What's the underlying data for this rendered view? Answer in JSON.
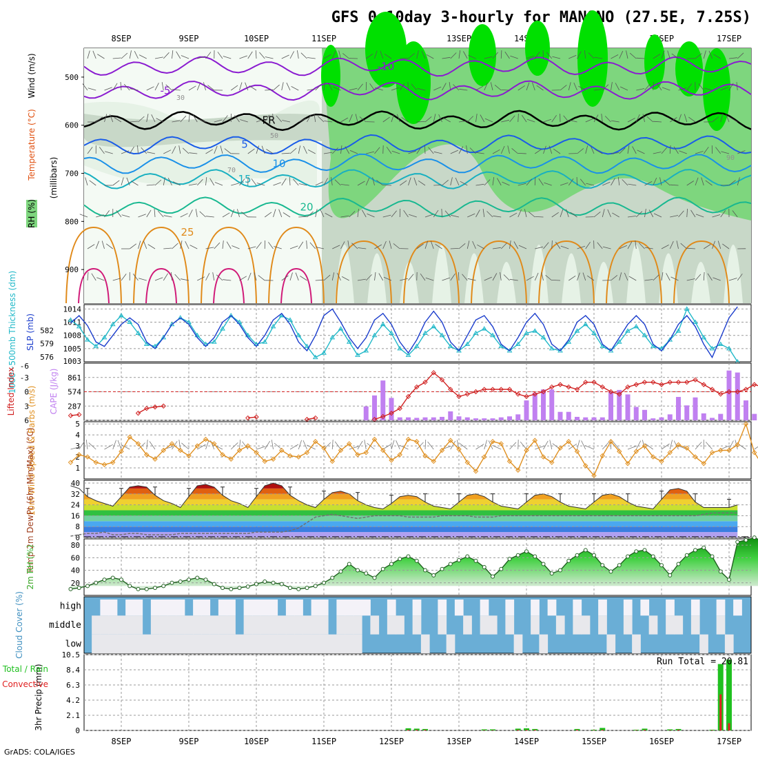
{
  "title": "GFS 0~10day 3-hourly for MANONO (27.5E, 7.25S)",
  "credit": "GrADS: COLA/IGES",
  "colors": {
    "temp_contour_cold": "#8a1bd0",
    "temp_contour_mid": "#1a5ce8",
    "temp_contour_warm": "#e08a1a",
    "temp_contour_hot": "#d01a78",
    "freezing": "#000000",
    "rh_light": "#e6f2e6",
    "rh_mid": "#c8d8c8",
    "rh_high": "#7ed67e",
    "rh_very_high": "#00e000",
    "slp": "#1a3ccc",
    "thickness": "#20b8c8",
    "lifted_index": "#d02020",
    "cape": "#c080f0",
    "wind_speed": "#e09020",
    "temp_fill": "#e05010",
    "dewpoint": "#707070",
    "rh2m": "#40c040",
    "cloud": "#6aaed6",
    "precip_total": "#20c020",
    "precip_conv": "#e02020"
  },
  "chart_data": [
    {
      "panel": "upper_air",
      "type": "heatmap",
      "title": "GFS 0~10day 3-hourly for MANONO (27.5E, 7.25S)",
      "ylabel": "(millibars)",
      "legend_labels": [
        "RH (%)",
        "Temperature (°C)",
        "Wind (m/s)"
      ],
      "x_tick_labels": [
        "8SEP",
        "9SEP",
        "10SEP",
        "11SEP",
        "12SEP",
        "13SEP",
        "14SEP",
        "15SEP",
        "16SEP",
        "17SEP"
      ],
      "y_ticks": [
        500,
        600,
        700,
        800,
        900
      ],
      "ylim": [
        970,
        440
      ],
      "temperature_contour_labels": [
        "-10",
        "-5",
        "FR",
        "5",
        "10",
        "15",
        "20",
        "25"
      ],
      "rh_contour_labels": [
        "30",
        "50",
        "70",
        "90"
      ],
      "freezing_level_mb": 590
    },
    {
      "panel": "slp_thickness",
      "type": "line",
      "ylabel_left": "1000~500mb Thickness (dm)",
      "ylabel_right": "SLP (mb)",
      "thickness_ticks": [
        "576",
        "579",
        "582"
      ],
      "slp_ticks": [
        "1005",
        "1008",
        "1011",
        "1014"
      ],
      "slp_ylim": [
        1002,
        1015
      ],
      "bottom_tick": "1003",
      "series": [
        {
          "name": "SLP",
          "values": [
            1010.8,
            1012.5,
            1010.2,
            1006.5,
            1005.5,
            1008.0,
            1010.5,
            1012.0,
            1010.5,
            1006.5,
            1005.0,
            1007.5,
            1010.5,
            1012.0,
            1010.5,
            1007.5,
            1005.5,
            1007.5,
            1011.0,
            1012.5,
            1010.5,
            1007.5,
            1005.5,
            1008.0,
            1011.5,
            1013.0,
            1010.5,
            1006.5,
            1004.5,
            1008.0,
            1012.5,
            1014.0,
            1011.0,
            1007.5,
            1005.0,
            1007.5,
            1011.5,
            1013.0,
            1010.5,
            1006.5,
            1004.0,
            1007.0,
            1011.0,
            1013.5,
            1011.0,
            1006.5,
            1004.5,
            1008.0,
            1011.5,
            1012.5,
            1010.0,
            1006.0,
            1004.5,
            1007.5,
            1011.0,
            1013.0,
            1010.5,
            1006.0,
            1004.5,
            1007.0,
            1011.0,
            1012.5,
            1010.5,
            1006.0,
            1004.5,
            1007.5,
            1010.5,
            1012.5,
            1010.5,
            1006.0,
            1004.5,
            1007.0,
            1010.5,
            1012.5,
            1010.0,
            1006.0,
            1003.0,
            1007.5,
            1012.0,
            1014.5
          ]
        },
        {
          "name": "1000~500mb Thickness",
          "values": [
            1011.5,
            1010.0,
            1007.0,
            1005.5,
            1007.5,
            1010.5,
            1012.5,
            1011.0,
            1008.5,
            1006.0,
            1005.5,
            1007.5,
            1010.5,
            1012.0,
            1011.0,
            1008.0,
            1006.0,
            1006.5,
            1009.5,
            1012.5,
            1011.0,
            1008.0,
            1006.0,
            1006.5,
            1010.0,
            1012.5,
            1011.5,
            1008.0,
            1005.5,
            1003.0,
            1004.0,
            1007.5,
            1009.5,
            1006.5,
            1003.5,
            1004.5,
            1008.0,
            1010.5,
            1008.5,
            1005.0,
            1003.5,
            1005.5,
            1008.5,
            1010.0,
            1008.0,
            1005.5,
            1004.5,
            1006.0,
            1008.5,
            1009.5,
            1008.0,
            1005.5,
            1004.5,
            1006.0,
            1008.5,
            1009.0,
            1007.5,
            1005.0,
            1004.5,
            1006.5,
            1009.0,
            1010.5,
            1008.5,
            1005.5,
            1004.5,
            1006.5,
            1009.0,
            1010.0,
            1008.0,
            1005.5,
            1005.0,
            1007.0,
            1009.0,
            1014.0,
            1011.0,
            1007.5,
            1005.0,
            1006.0,
            1005.0,
            1002.0
          ]
        }
      ]
    },
    {
      "panel": "lifted_index_cape",
      "type": "bar",
      "ylabel_left": "Lifted Index",
      "ylabel_right": "CAPE (J/kg)",
      "li_ticks": [
        "-3",
        "0",
        "3",
        "6"
      ],
      "cape_ticks": [
        "287",
        "574",
        "861"
      ],
      "li_ylim": [
        6,
        -6
      ],
      "top_tick": "-6",
      "series": [
        {
          "name": "CAPE (J/kg)",
          "values": [
            0,
            0,
            0,
            0,
            0,
            0,
            0,
            0,
            0,
            0,
            0,
            0,
            0,
            0,
            0,
            0,
            0,
            0,
            0,
            0,
            0,
            0,
            0,
            0,
            0,
            0,
            0,
            0,
            0,
            0,
            0,
            0,
            0,
            0,
            0,
            280,
            500,
            800,
            450,
            60,
            60,
            50,
            60,
            60,
            70,
            180,
            80,
            60,
            40,
            40,
            40,
            60,
            80,
            120,
            400,
            550,
            620,
            620,
            170,
            170,
            70,
            60,
            60,
            60,
            580,
            610,
            520,
            270,
            210,
            40,
            60,
            120,
            470,
            300,
            460,
            140,
            50,
            130,
            1000,
            960,
            400,
            130,
            130,
            140,
            140,
            130
          ]
        },
        {
          "name": "Lifted Index",
          "values": [
            5.0,
            4.8,
            null,
            null,
            null,
            null,
            null,
            null,
            4.5,
            3.5,
            3.2,
            3.0,
            null,
            null,
            null,
            null,
            null,
            null,
            null,
            null,
            null,
            5.5,
            5.3,
            null,
            null,
            null,
            null,
            null,
            5.8,
            5.5,
            null,
            null,
            null,
            null,
            null,
            null,
            5.8,
            5.2,
            4.5,
            3.5,
            1.0,
            -1.0,
            -2.0,
            -4.0,
            -2.5,
            -0.5,
            1.0,
            0.5,
            0.0,
            -0.5,
            -0.5,
            -0.5,
            -0.5,
            0.5,
            1.0,
            0.5,
            0.0,
            -1.0,
            -1.5,
            -1.0,
            -0.5,
            -2.0,
            -2.0,
            -1.0,
            0.0,
            0.5,
            -1.0,
            -1.5,
            -2.0,
            -2.0,
            -1.5,
            -2.0,
            -2.0,
            -2.0,
            -2.5,
            -1.5,
            -0.5,
            0.5,
            0.0,
            0.0,
            -0.5,
            -1.5,
            -1.0,
            -1.5,
            -4.0,
            -3.5,
            -1.5,
            0.5,
            -1.0,
            -2.5,
            -3.0,
            -2.5,
            -3.0
          ]
        }
      ]
    },
    {
      "panel": "wind_10m",
      "type": "line",
      "ylabel": "10m Wind Speed & Barbs (m/s)",
      "y_ticks": [
        "1",
        "2",
        "3",
        "4",
        "5"
      ],
      "ylim": [
        0,
        5.2
      ],
      "series": [
        {
          "name": "10m Wind Speed",
          "values": [
            1.5,
            2.2,
            2.0,
            1.5,
            1.3,
            1.5,
            2.5,
            3.8,
            3.2,
            2.2,
            1.8,
            2.6,
            3.2,
            2.6,
            2.1,
            3.0,
            3.6,
            3.2,
            2.2,
            1.8,
            2.6,
            3.0,
            2.4,
            1.6,
            1.8,
            2.6,
            2.1,
            2.0,
            2.4,
            3.4,
            2.8,
            1.6,
            2.6,
            3.2,
            2.2,
            2.4,
            3.6,
            2.6,
            1.7,
            2.2,
            3.6,
            3.4,
            2.1,
            1.6,
            2.6,
            3.5,
            2.7,
            1.5,
            0.7,
            2.0,
            3.4,
            3.2,
            1.6,
            0.8,
            2.6,
            3.5,
            2.0,
            1.5,
            2.8,
            3.4,
            2.5,
            1.2,
            0.3,
            2.1,
            3.4,
            2.5,
            1.4,
            2.5,
            3.0,
            2.0,
            1.6,
            2.4,
            3.1,
            2.8,
            2.0,
            1.4,
            2.4,
            2.6,
            2.6,
            3.1,
            5.0,
            2.4,
            1.2,
            1.8
          ]
        }
      ]
    },
    {
      "panel": "temp_2m",
      "type": "area",
      "ylabel": "2m Temp 2m DewPt (6hr Min/Max) (°C)",
      "y_ticks": [
        "0",
        "8",
        "16",
        "24",
        "32",
        "40"
      ],
      "ylim": [
        0,
        42
      ],
      "series": [
        {
          "name": "2m Temp",
          "values": [
            38,
            36,
            30,
            27,
            25,
            23,
            30,
            37,
            38,
            37,
            31,
            27,
            25,
            22,
            30,
            38,
            39,
            37,
            31,
            27,
            25,
            22,
            30,
            38,
            40,
            38,
            31,
            27,
            24,
            22,
            28,
            33,
            34,
            32,
            27,
            24,
            22,
            21,
            25,
            30,
            31,
            30,
            26,
            23,
            22,
            21,
            26,
            31,
            32,
            30,
            26,
            23,
            22,
            21,
            26,
            31,
            32,
            30,
            26,
            23,
            22,
            21,
            26,
            31,
            32,
            30,
            26,
            23,
            22,
            21,
            28,
            35,
            36,
            34,
            26,
            22,
            22,
            22,
            22,
            24
          ]
        },
        {
          "name": "2m DewPt",
          "values": [
            1,
            2,
            3,
            3,
            4,
            2,
            2,
            3,
            3,
            2,
            2,
            2,
            2,
            3,
            3,
            3,
            3,
            3,
            3,
            3,
            3,
            3,
            4,
            4,
            4,
            4,
            5,
            7,
            11,
            15,
            16,
            17,
            16,
            15,
            14,
            15,
            16,
            16,
            16,
            16,
            15,
            15,
            15,
            15,
            16,
            16,
            16,
            16,
            15,
            15,
            15,
            16,
            16,
            16,
            16,
            16,
            16,
            16,
            16,
            16,
            16,
            16,
            16,
            16,
            16,
            16,
            16,
            16,
            16,
            16,
            16,
            16,
            16,
            16,
            16,
            17,
            18,
            18,
            18,
            18
          ]
        }
      ]
    },
    {
      "panel": "rh_2m",
      "type": "area",
      "ylabel": "2m RH (%)",
      "y_ticks": [
        "20",
        "40",
        "60",
        "80"
      ],
      "ylim": [
        0,
        90
      ],
      "series": [
        {
          "name": "2m RH",
          "values": [
            10,
            12,
            15,
            20,
            25,
            28,
            25,
            15,
            10,
            10,
            12,
            15,
            20,
            22,
            25,
            28,
            25,
            18,
            12,
            10,
            12,
            14,
            18,
            22,
            20,
            18,
            12,
            10,
            12,
            15,
            20,
            28,
            38,
            50,
            40,
            35,
            28,
            42,
            50,
            58,
            62,
            55,
            40,
            32,
            42,
            50,
            56,
            62,
            55,
            45,
            30,
            42,
            58,
            64,
            70,
            62,
            50,
            35,
            40,
            55,
            64,
            72,
            64,
            48,
            38,
            48,
            62,
            70,
            72,
            62,
            48,
            32,
            50,
            64,
            72,
            76,
            62,
            38,
            25,
            85,
            88,
            92,
            86,
            82
          ]
        }
      ]
    },
    {
      "panel": "cloud_cover",
      "type": "heatmap",
      "ylabel": "Cloud Cover (%)",
      "row_labels": [
        "high",
        "middle",
        "low"
      ]
    },
    {
      "panel": "precip",
      "type": "bar",
      "ylabel": "3hr Precip (mm)",
      "legend_labels": [
        "Total / Rain",
        "Convective"
      ],
      "annotation": "Run Total = 20.81",
      "y_ticks": [
        "0",
        "2.1",
        "4.2",
        "6.3",
        "8.4",
        "10.5"
      ],
      "ylim": [
        0,
        10.5
      ],
      "series": [
        {
          "name": "Total / Rain",
          "values": [
            0,
            0,
            0,
            0,
            0,
            0,
            0,
            0,
            0,
            0,
            0,
            0,
            0,
            0,
            0,
            0,
            0,
            0,
            0,
            0,
            0,
            0,
            0,
            0,
            0,
            0,
            0,
            0,
            0,
            0,
            0,
            0,
            0,
            0,
            0,
            0,
            0,
            0,
            0,
            0,
            0.3,
            0.25,
            0.2,
            0,
            0,
            0,
            0,
            0,
            0,
            0.15,
            0.15,
            0,
            0,
            0.25,
            0.3,
            0.2,
            0,
            0,
            0,
            0,
            0.2,
            0,
            0.1,
            0.35,
            0,
            0,
            0,
            0.1,
            0.25,
            0,
            0,
            0.15,
            0.2,
            0,
            0,
            0,
            0.1,
            9.2,
            9.8,
            0
          ]
        },
        {
          "name": "Convective",
          "values": [
            0,
            0,
            0,
            0,
            0,
            0,
            0,
            0,
            0,
            0,
            0,
            0,
            0,
            0,
            0,
            0,
            0,
            0,
            0,
            0,
            0,
            0,
            0,
            0,
            0,
            0,
            0,
            0,
            0,
            0,
            0,
            0,
            0,
            0,
            0,
            0,
            0,
            0,
            0,
            0,
            0.1,
            0.1,
            0.1,
            0,
            0,
            0,
            0,
            0,
            0,
            0.05,
            0.05,
            0,
            0,
            0.1,
            0.1,
            0.1,
            0,
            0,
            0,
            0,
            0.1,
            0,
            0.05,
            0.1,
            0,
            0,
            0,
            0.05,
            0.1,
            0,
            0,
            0.05,
            0.1,
            0,
            0,
            0,
            0.05,
            5.0,
            1.0,
            0
          ]
        }
      ]
    }
  ]
}
